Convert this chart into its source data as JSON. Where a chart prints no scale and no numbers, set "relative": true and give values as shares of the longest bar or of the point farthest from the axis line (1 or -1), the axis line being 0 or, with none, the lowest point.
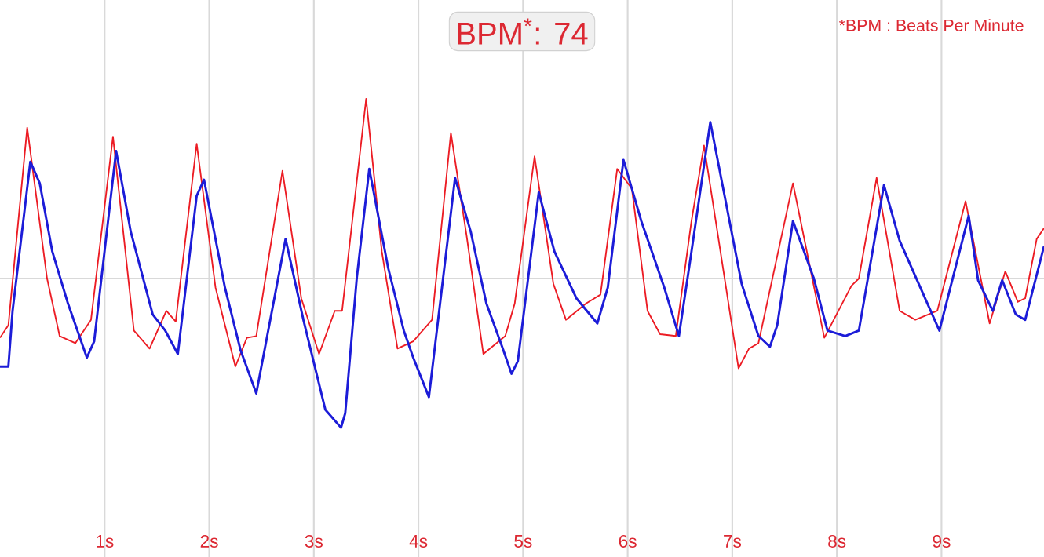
{
  "chart_data": {
    "type": "line",
    "title": "BPM$^{*}$: 74",
    "annotations": [
      "*BPM : Beats Per Minute"
    ],
    "relative": true,
    "grid": "x",
    "xlim": [
      0,
      9.98
    ],
    "xticks": [
      {
        "value": 1,
        "label": "1s"
      },
      {
        "value": 2,
        "label": "2s"
      },
      {
        "value": 3,
        "label": "3s"
      },
      {
        "value": 4,
        "label": "4s"
      },
      {
        "value": 5,
        "label": "5s"
      },
      {
        "value": 6,
        "label": "6s"
      },
      {
        "value": 7,
        "label": "7s"
      },
      {
        "value": 8,
        "label": "8s"
      },
      {
        "value": 9,
        "label": "9s"
      }
    ],
    "series": [
      {
        "color": "#ec1c24",
        "x": [
          0,
          0.08,
          0.26,
          0.45,
          0.57,
          0.72,
          0.87,
          1.08,
          1.28,
          1.43,
          1.59,
          1.68,
          1.88,
          2.06,
          2.25,
          2.36,
          2.45,
          2.7,
          2.88,
          3.05,
          3.2,
          3.27,
          3.5,
          3.65,
          3.8,
          3.95,
          4.13,
          4.31,
          4.46,
          4.62,
          4.83,
          4.92,
          5.11,
          5.29,
          5.41,
          5.6,
          5.74,
          5.9,
          6.04,
          6.19,
          6.31,
          6.46,
          6.61,
          6.73,
          7.06,
          7.16,
          7.25,
          7.58,
          7.88,
          8.14,
          8.21,
          8.38,
          8.6,
          8.75,
          8.96,
          9.23,
          9.46,
          9.61,
          9.73,
          9.8,
          9.91,
          9.98
        ],
        "values": [
          -0.33,
          -0.26,
          0.84,
          0,
          -0.32,
          -0.36,
          -0.23,
          0.79,
          -0.29,
          -0.39,
          -0.18,
          -0.24,
          0.75,
          -0.05,
          -0.49,
          -0.33,
          -0.32,
          0.6,
          -0.11,
          -0.42,
          -0.18,
          -0.18,
          1.0,
          0.15,
          -0.39,
          -0.35,
          -0.23,
          0.81,
          0.24,
          -0.42,
          -0.32,
          -0.14,
          0.68,
          -0.03,
          -0.23,
          -0.14,
          -0.09,
          0.61,
          0.5,
          -0.18,
          -0.31,
          -0.32,
          0.32,
          0.74,
          -0.5,
          -0.39,
          -0.36,
          0.53,
          -0.33,
          -0.04,
          0,
          0.56,
          -0.18,
          -0.23,
          -0.18,
          0.43,
          -0.25,
          0.04,
          -0.13,
          -0.11,
          0.22,
          0.28
        ]
      },
      {
        "color": "#1c1cd8",
        "x": [
          0,
          0.08,
          0.12,
          0.29,
          0.38,
          0.5,
          0.65,
          0.83,
          0.9,
          1.11,
          1.25,
          1.46,
          1.58,
          1.7,
          1.88,
          1.95,
          2.15,
          2.3,
          2.45,
          2.73,
          2.9,
          3.11,
          3.26,
          3.3,
          3.41,
          3.53,
          3.71,
          3.86,
          3.95,
          4.1,
          4.35,
          4.5,
          4.65,
          4.8,
          4.89,
          4.95,
          5.15,
          5.3,
          5.51,
          5.71,
          5.81,
          5.96,
          6.13,
          6.35,
          6.49,
          6.61,
          6.79,
          7.09,
          7.25,
          7.36,
          7.43,
          7.58,
          7.78,
          7.91,
          8.08,
          8.21,
          8.45,
          8.6,
          8.98,
          9.26,
          9.35,
          9.49,
          9.58,
          9.71,
          9.8,
          9.98
        ],
        "values": [
          -0.49,
          -0.49,
          -0.18,
          0.65,
          0.53,
          0.15,
          -0.14,
          -0.44,
          -0.35,
          0.71,
          0.26,
          -0.2,
          -0.29,
          -0.42,
          0.46,
          0.55,
          -0.05,
          -0.4,
          -0.64,
          0.22,
          -0.23,
          -0.73,
          -0.83,
          -0.75,
          0,
          0.61,
          0.06,
          -0.29,
          -0.44,
          -0.66,
          0.56,
          0.26,
          -0.14,
          -0.38,
          -0.53,
          -0.46,
          0.48,
          0.15,
          -0.11,
          -0.25,
          -0.05,
          0.66,
          0.32,
          -0.05,
          -0.32,
          0.15,
          0.87,
          -0.03,
          -0.32,
          -0.38,
          -0.26,
          0.32,
          0,
          -0.29,
          -0.32,
          -0.29,
          0.52,
          0.21,
          -0.29,
          0.35,
          -0.01,
          -0.18,
          -0.01,
          -0.2,
          -0.23,
          0.18
        ]
      }
    ]
  }
}
